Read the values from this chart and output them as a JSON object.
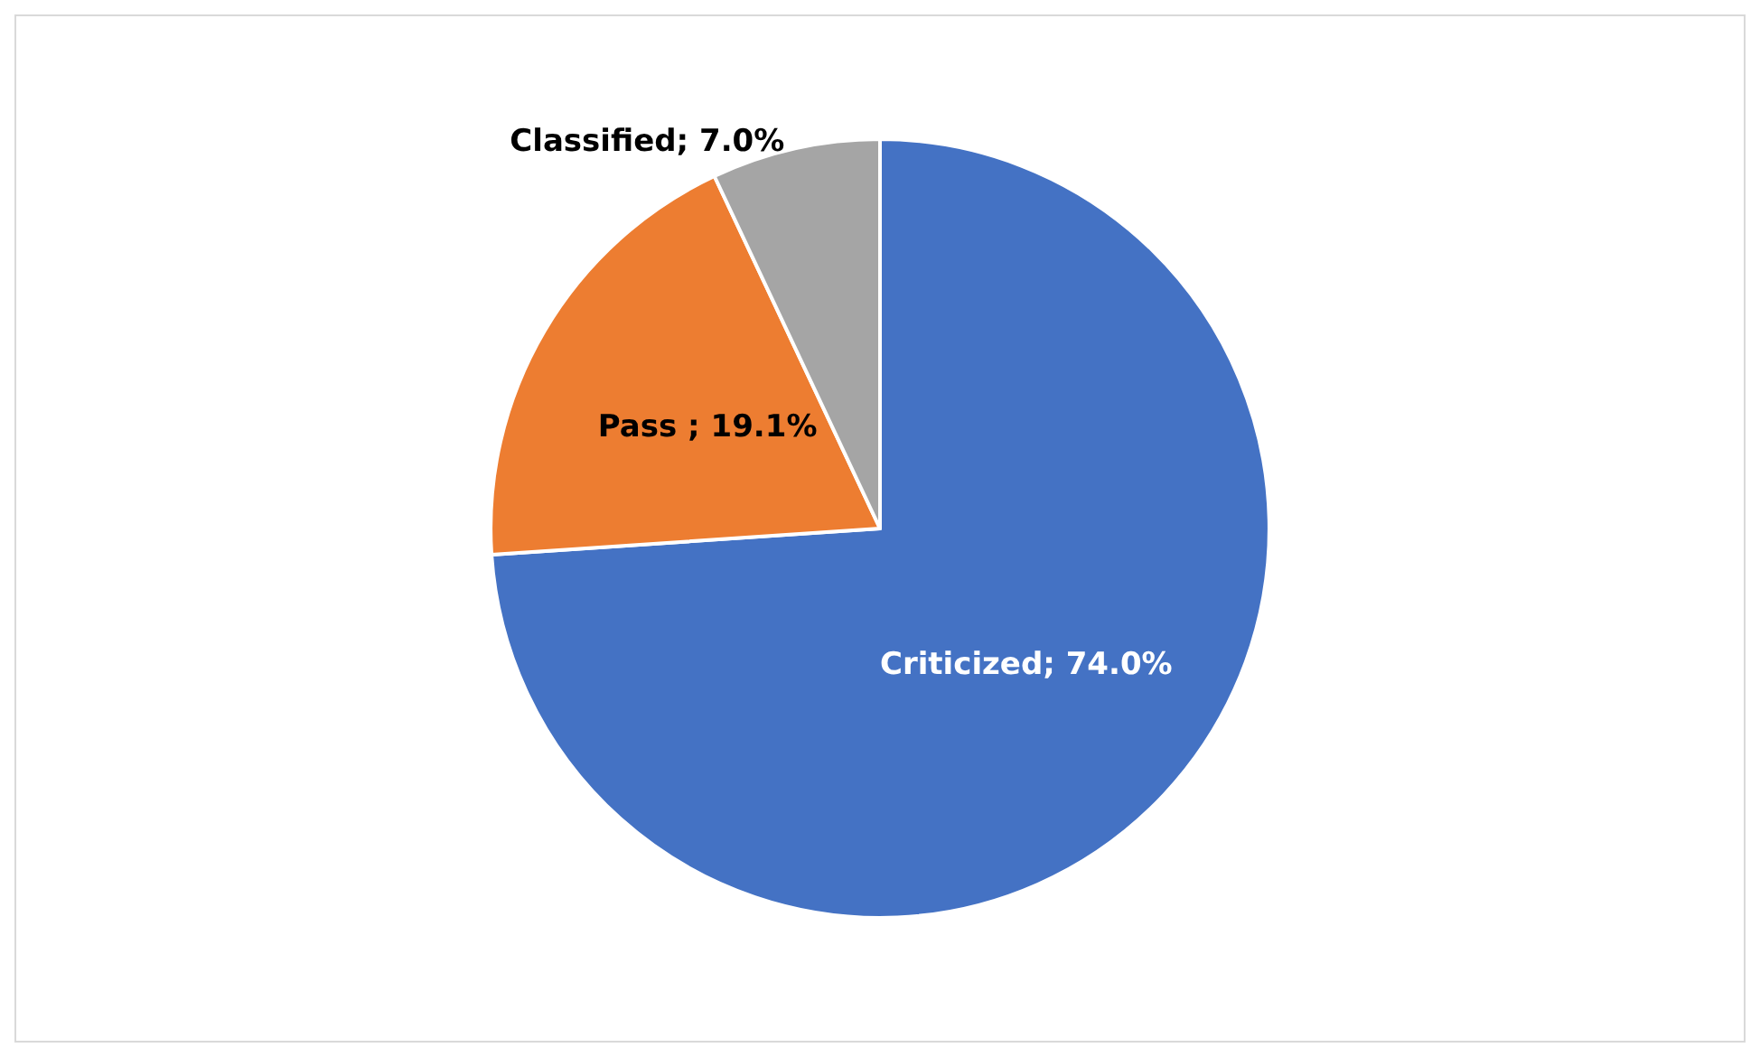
{
  "chart_data": {
    "type": "pie",
    "categories": [
      "Criticized",
      "Pass ",
      "Classified"
    ],
    "values": [
      74.0,
      19.1,
      7.0
    ],
    "colors": [
      "#4472c4",
      "#ed7d31",
      "#a5a5a5"
    ],
    "value_labels": [
      "74.0%",
      "19.1%",
      "7.0%"
    ],
    "legend": false
  }
}
